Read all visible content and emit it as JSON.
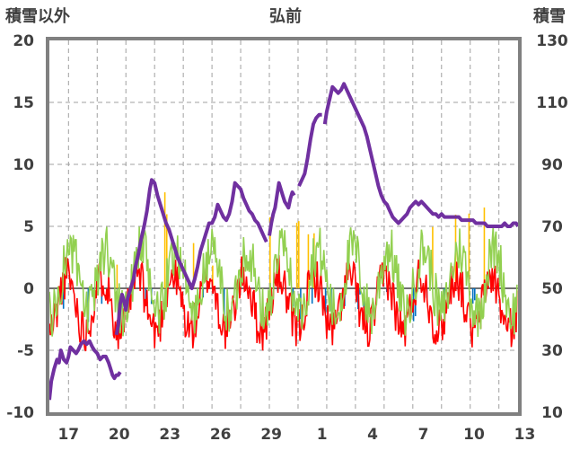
{
  "chart_data": {
    "type": "line",
    "title": "弘前",
    "left_axis_label": "積雪以外",
    "right_axis_label": "積雪",
    "left_ylim": [
      -10,
      20
    ],
    "left_ticks": [
      "20",
      "15",
      "10",
      "5",
      "0",
      "-5",
      "-10"
    ],
    "right_ylim": [
      10,
      130
    ],
    "right_ticks": [
      "130",
      "110",
      "90",
      "70",
      "50",
      "30",
      "10"
    ],
    "x_tick_labels": [
      "17",
      "20",
      "23",
      "26",
      "29",
      "1",
      "4",
      "7",
      "10",
      "13"
    ],
    "grid": true,
    "colors": {
      "snow_depth": "#7030A0",
      "temperature": "#FF0000",
      "secondary_line": "#92D050",
      "bars_positive": "#FFC000",
      "bars_negative": "#0070C0",
      "frame": "#808080",
      "grid": "#A0A0A0"
    },
    "series": [
      {
        "role": "snow_depth",
        "axis": "right",
        "segments": [
          [
            [
              0.0,
              14
            ],
            [
              0.2,
              20
            ],
            [
              0.5,
              24
            ],
            [
              0.8,
              27
            ],
            [
              1.0,
              26
            ],
            [
              1.2,
              30
            ],
            [
              1.5,
              27
            ],
            [
              1.8,
              26
            ],
            [
              2.0,
              28
            ],
            [
              2.2,
              31
            ],
            [
              2.5,
              30
            ],
            [
              2.8,
              29
            ],
            [
              3.0,
              30
            ],
            [
              3.3,
              32
            ],
            [
              3.6,
              33
            ],
            [
              3.9,
              32
            ],
            [
              4.2,
              33
            ],
            [
              4.5,
              31
            ],
            [
              4.7,
              30
            ],
            [
              5.0,
              29
            ],
            [
              5.3,
              27
            ],
            [
              5.6,
              28
            ],
            [
              5.9,
              28
            ],
            [
              6.2,
              26
            ],
            [
              6.4,
              24
            ],
            [
              6.6,
              22
            ],
            [
              6.8,
              21
            ],
            [
              7.0,
              22
            ],
            [
              7.2,
              22
            ],
            [
              7.4,
              23
            ]
          ]
        ],
        "segments_b": [
          [
            [
              7.0,
              35
            ],
            [
              7.2,
              38
            ],
            [
              7.4,
              45
            ],
            [
              7.6,
              48
            ],
            [
              7.8,
              46
            ],
            [
              8.0,
              43
            ],
            [
              8.2,
              47
            ],
            [
              8.5,
              50
            ],
            [
              8.8,
              53
            ],
            [
              9.0,
              57
            ],
            [
              9.3,
              61
            ],
            [
              9.6,
              66
            ],
            [
              9.9,
              70
            ],
            [
              10.2,
              75
            ],
            [
              10.5,
              82
            ],
            [
              10.7,
              85
            ],
            [
              11.0,
              84
            ],
            [
              11.3,
              80
            ],
            [
              11.6,
              77
            ],
            [
              11.9,
              74
            ],
            [
              12.2,
              71
            ],
            [
              12.5,
              69
            ],
            [
              12.8,
              66
            ],
            [
              13.1,
              63
            ],
            [
              13.4,
              60
            ],
            [
              13.7,
              58
            ],
            [
              14.0,
              56
            ],
            [
              14.3,
              54
            ],
            [
              14.6,
              52
            ],
            [
              14.9,
              50
            ],
            [
              15.2,
              53
            ],
            [
              15.5,
              57
            ],
            [
              15.8,
              62
            ],
            [
              16.1,
              65
            ],
            [
              16.4,
              68
            ],
            [
              16.7,
              71
            ],
            [
              17.0,
              71
            ],
            [
              17.3,
              73
            ],
            [
              17.6,
              77
            ],
            [
              17.9,
              75
            ],
            [
              18.2,
              73
            ],
            [
              18.5,
              72
            ],
            [
              18.8,
              74
            ],
            [
              19.1,
              78
            ],
            [
              19.4,
              84
            ],
            [
              19.7,
              83
            ],
            [
              20.0,
              82
            ],
            [
              20.3,
              79
            ],
            [
              20.6,
              77
            ],
            [
              20.9,
              75
            ],
            [
              21.2,
              74
            ],
            [
              21.5,
              72
            ],
            [
              21.8,
              71
            ],
            [
              22.1,
              69
            ],
            [
              22.4,
              67
            ],
            [
              22.7,
              65
            ]
          ]
        ],
        "segments_c": [
          [
            [
              23.0,
              67
            ],
            [
              23.2,
              71
            ],
            [
              23.4,
              74
            ],
            [
              23.6,
              76
            ],
            [
              23.8,
              80
            ],
            [
              24.0,
              84
            ],
            [
              24.2,
              82
            ],
            [
              24.4,
              80
            ],
            [
              24.6,
              78
            ],
            [
              24.8,
              77
            ],
            [
              25.0,
              76
            ],
            [
              25.2,
              79
            ],
            [
              25.4,
              81
            ],
            [
              25.6,
              80
            ]
          ],
          [
            [
              26.1,
              83
            ],
            [
              26.4,
              85
            ],
            [
              26.7,
              87
            ],
            [
              27.0,
              92
            ],
            [
              27.3,
              98
            ],
            [
              27.6,
              103
            ],
            [
              27.9,
              105
            ],
            [
              28.2,
              106
            ],
            [
              28.5,
              106
            ]
          ],
          [
            [
              28.8,
              103
            ],
            [
              29.0,
              107
            ],
            [
              29.3,
              111
            ],
            [
              29.6,
              115
            ],
            [
              29.9,
              114
            ],
            [
              30.2,
              113
            ],
            [
              30.5,
              114
            ],
            [
              30.8,
              116
            ],
            [
              31.1,
              114
            ],
            [
              31.4,
              112
            ],
            [
              31.7,
              110
            ],
            [
              32.0,
              108
            ],
            [
              32.3,
              106
            ],
            [
              32.6,
              104
            ],
            [
              32.9,
              102
            ],
            [
              33.2,
              99
            ],
            [
              33.5,
              95
            ],
            [
              33.8,
              91
            ],
            [
              34.1,
              87
            ],
            [
              34.4,
              83
            ],
            [
              34.7,
              80
            ],
            [
              35.0,
              78
            ],
            [
              35.3,
              77
            ],
            [
              35.6,
              75
            ],
            [
              35.9,
              73
            ],
            [
              36.2,
              72
            ],
            [
              36.5,
              71
            ],
            [
              36.8,
              72
            ],
            [
              37.1,
              73
            ],
            [
              37.4,
              74
            ],
            [
              37.7,
              76
            ],
            [
              38.0,
              77
            ],
            [
              38.3,
              78
            ],
            [
              38.6,
              77
            ],
            [
              38.9,
              78
            ],
            [
              39.2,
              77
            ],
            [
              39.5,
              76
            ],
            [
              39.8,
              75
            ],
            [
              40.1,
              74
            ],
            [
              40.4,
              74
            ],
            [
              40.7,
              73
            ],
            [
              41.0,
              74
            ],
            [
              41.3,
              73
            ],
            [
              41.6,
              73
            ],
            [
              41.9,
              73
            ],
            [
              42.2,
              73
            ],
            [
              42.5,
              73
            ],
            [
              42.8,
              73
            ],
            [
              43.1,
              72
            ],
            [
              43.4,
              72
            ],
            [
              43.7,
              72
            ],
            [
              44.0,
              72
            ],
            [
              44.3,
              72
            ],
            [
              44.6,
              71
            ],
            [
              44.9,
              71
            ],
            [
              45.2,
              71
            ],
            [
              45.5,
              71
            ],
            [
              45.8,
              70
            ],
            [
              46.1,
              70
            ],
            [
              46.4,
              70
            ],
            [
              46.7,
              70
            ],
            [
              47.0,
              70
            ],
            [
              47.3,
              70
            ],
            [
              47.6,
              71
            ],
            [
              47.9,
              70
            ],
            [
              48.2,
              70
            ],
            [
              48.5,
              71
            ],
            [
              48.8,
              71
            ],
            [
              49.0,
              70
            ]
          ]
        ]
      }
    ]
  }
}
